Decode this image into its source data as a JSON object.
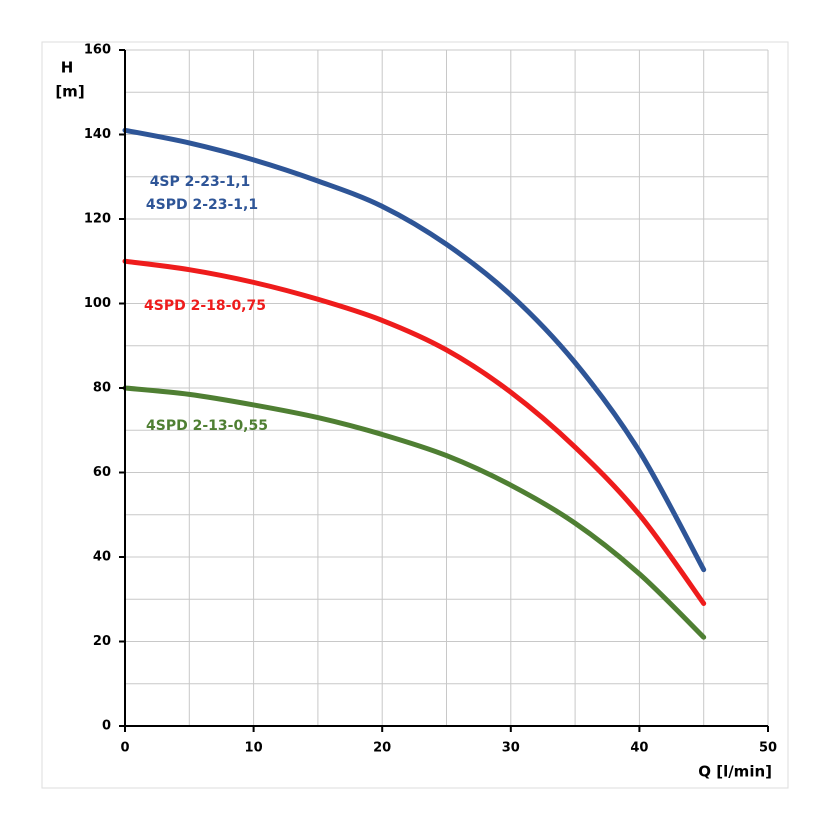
{
  "chart_data": {
    "type": "line",
    "y_label": "H",
    "y_unit": "[m]",
    "x_label": "Q [l/min]",
    "x": [
      0,
      5,
      10,
      15,
      20,
      25,
      30,
      35,
      40,
      45
    ],
    "series": [
      {
        "name": "4SP 2-23-1,1",
        "name2": "4SPD 2-23-1,1",
        "color": "#2e5597",
        "values": [
          141,
          138,
          134,
          129,
          123,
          114,
          102,
          86,
          65,
          37
        ]
      },
      {
        "name": "4SPD 2-18-0,75",
        "color": "#ee1c1c",
        "values": [
          110,
          108,
          105,
          101,
          96,
          89,
          79,
          66,
          50,
          29
        ]
      },
      {
        "name": "4SPD 2-13-0,55",
        "color": "#4f7f33",
        "values": [
          80,
          78.5,
          76,
          73,
          69,
          64,
          57,
          48,
          36,
          21
        ]
      }
    ],
    "xlim": [
      0,
      50
    ],
    "ylim": [
      0,
      160
    ],
    "xticks": [
      0,
      10,
      20,
      30,
      40,
      50
    ],
    "yticks": [
      0,
      20,
      40,
      60,
      80,
      100,
      120,
      140,
      160
    ],
    "minor_xticks": [
      5,
      15,
      25,
      35,
      45
    ],
    "minor_yticks": [
      10,
      30,
      50,
      70,
      90,
      110,
      130,
      150
    ],
    "grid": true
  }
}
